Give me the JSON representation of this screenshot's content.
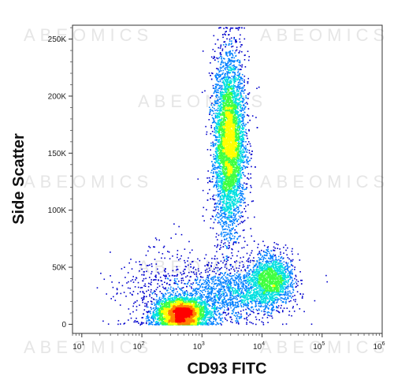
{
  "chart_data": {
    "type": "scatter",
    "subtype": "flow-cytometry-density",
    "xlabel": "CD93 FITC",
    "ylabel": "Side Scatter",
    "x_scale": "log",
    "xlim": [
      7,
      1000000
    ],
    "ylim": [
      -8000,
      262144
    ],
    "x_ticks": [
      {
        "value": 10,
        "base": "10",
        "exp": "1"
      },
      {
        "value": 100,
        "base": "10",
        "exp": "2"
      },
      {
        "value": 1000,
        "base": "10",
        "exp": "3"
      },
      {
        "value": 10000,
        "base": "10",
        "exp": "4"
      },
      {
        "value": 100000,
        "base": "10",
        "exp": "5"
      },
      {
        "value": 1000000,
        "base": "10",
        "exp": "6"
      }
    ],
    "y_ticks": [
      {
        "value": 0,
        "label": "0"
      },
      {
        "value": 50000,
        "label": "50K"
      },
      {
        "value": 100000,
        "label": "100K"
      },
      {
        "value": 150000,
        "label": "150K"
      },
      {
        "value": 200000,
        "label": "200K"
      },
      {
        "value": 250000,
        "label": "250K"
      }
    ],
    "color_scale": [
      "#0000cc",
      "#0080ff",
      "#00e0e0",
      "#40ff40",
      "#ffff00",
      "#ff8000",
      "#ff0000"
    ],
    "populations": [
      {
        "x_center": 2800,
        "y_center": 160000,
        "x_log_spread": 0.13,
        "y_spread": 38000,
        "count": 5200
      },
      {
        "x_center": 14000,
        "y_center": 40000,
        "x_log_spread": 0.18,
        "y_spread": 11000,
        "count": 1500
      },
      {
        "x_center": 450,
        "y_center": 10000,
        "x_log_spread": 0.22,
        "y_spread": 7000,
        "count": 3200
      },
      {
        "x_center": 3500,
        "y_center": 28000,
        "x_log_spread": 0.4,
        "y_spread": 12000,
        "count": 1300
      },
      {
        "x_center": 250,
        "y_center": 30000,
        "x_log_spread": 0.45,
        "y_spread": 20000,
        "count": 500
      }
    ],
    "grid": false,
    "legend": "none"
  },
  "watermark": "ABEOMICS"
}
